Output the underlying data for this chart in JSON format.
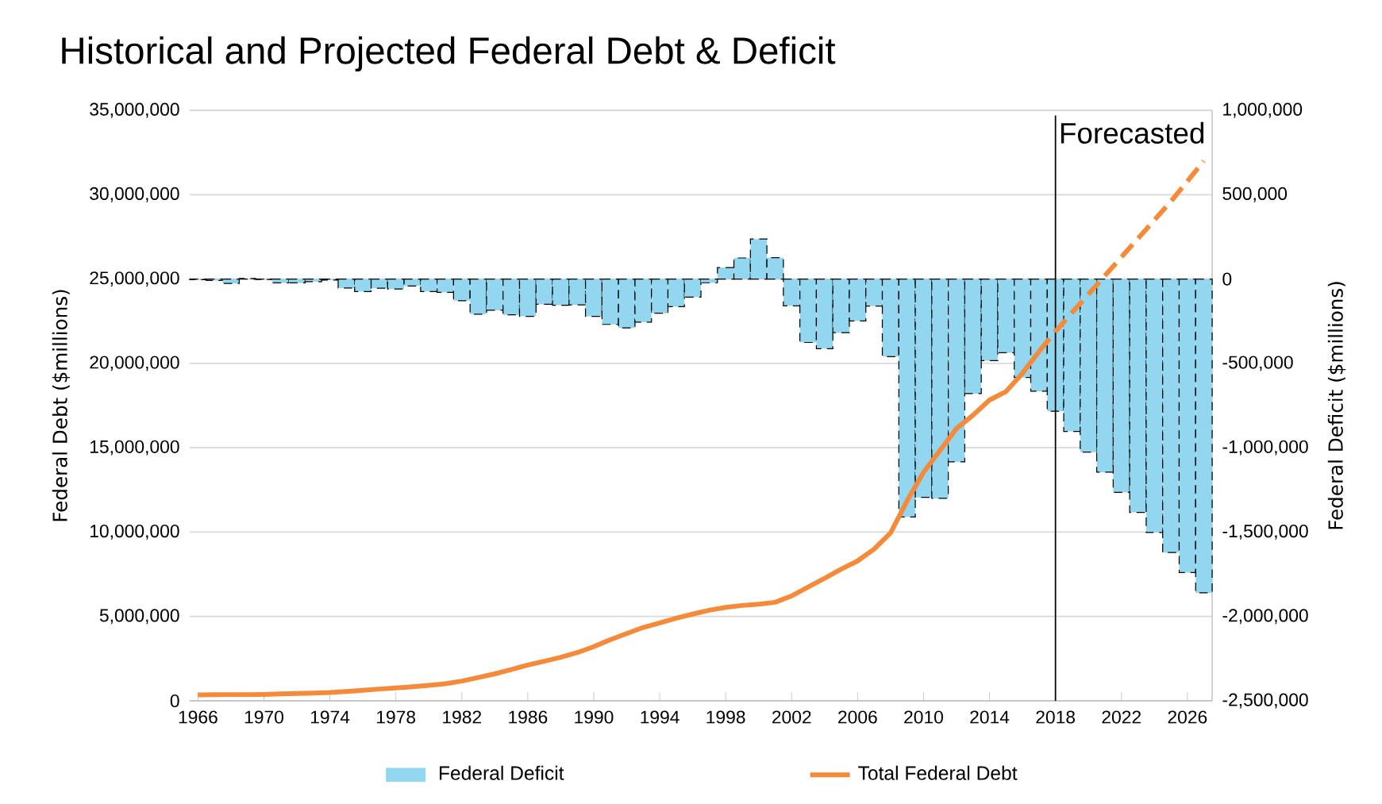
{
  "chart_data": {
    "type": "bar",
    "title": "Historical and Projected Federal Debt & Deficit",
    "ylabel": "Federal Debt ($millions)",
    "y2label": "Federal Deficit ($millions)",
    "categories": [
      "1966",
      null,
      null,
      null,
      "1970",
      null,
      null,
      null,
      "1974",
      null,
      null,
      null,
      "1978",
      null,
      null,
      null,
      "1982",
      null,
      null,
      null,
      "1986",
      null,
      null,
      null,
      "1990",
      null,
      null,
      null,
      "1994",
      null,
      null,
      null,
      "1998",
      null,
      null,
      null,
      "2002",
      null,
      null,
      null,
      "2006",
      null,
      null,
      null,
      "2010",
      null,
      null,
      null,
      "2014",
      null,
      null,
      null,
      "2018",
      null,
      null,
      null,
      "2022",
      null,
      null,
      null,
      "2026",
      null
    ],
    "series": [
      {
        "name": "Federal Deficit",
        "axis": "y2",
        "color": "#92d6ef",
        "values": [
          -4000,
          -9000,
          -26000,
          3000,
          -3000,
          -23000,
          -23000,
          -15000,
          -6000,
          -53000,
          -74000,
          -54000,
          -59000,
          -41000,
          -74000,
          -79000,
          -128000,
          -208000,
          -185000,
          -212000,
          -221000,
          -150000,
          -155000,
          -153000,
          -221000,
          -269000,
          -290000,
          -255000,
          -203000,
          -164000,
          -107000,
          -22000,
          68000,
          125000,
          237000,
          127000,
          -159000,
          -376000,
          -413000,
          -318000,
          -248000,
          -160000,
          -460000,
          -1410000,
          -1294000,
          -1300000,
          -1083000,
          -679000,
          -484000,
          -437000,
          -584000,
          -665000,
          -784000,
          -903000,
          -1026000,
          -1145000,
          -1264000,
          -1383000,
          -1502000,
          -1621000,
          -1740000,
          -1860000
        ]
      },
      {
        "name": "Total Federal Debt",
        "type": "line",
        "color": "#f58a3a",
        "line_style": "solid",
        "values": [
          350000,
          360000,
          370000,
          370000,
          380000,
          410000,
          430000,
          460000,
          490000,
          550000,
          620000,
          700000,
          760000,
          830000,
          920000,
          1010000,
          1170000,
          1380000,
          1600000,
          1850000,
          2120000,
          2350000,
          2580000,
          2860000,
          3210000,
          3620000,
          3990000,
          4350000,
          4620000,
          4900000,
          5140000,
          5370000,
          5540000,
          5650000,
          5730000,
          5840000,
          6220000,
          6750000,
          7260000,
          7800000,
          8290000,
          8990000,
          9960000,
          11850000,
          13550000,
          14840000,
          16140000,
          16930000,
          17830000,
          18330000,
          19420000,
          20700000,
          null,
          null,
          null,
          null,
          null,
          null,
          null,
          null,
          null,
          null
        ]
      },
      {
        "type": "line",
        "color": "#f58a3a",
        "line_style": "dashed",
        "values": [
          null,
          null,
          null,
          null,
          null,
          null,
          null,
          null,
          null,
          null,
          null,
          null,
          null,
          null,
          null,
          null,
          null,
          null,
          null,
          null,
          null,
          null,
          null,
          null,
          null,
          null,
          null,
          null,
          null,
          null,
          null,
          null,
          null,
          null,
          null,
          null,
          null,
          null,
          null,
          null,
          null,
          null,
          null,
          null,
          null,
          null,
          null,
          null,
          null,
          null,
          null,
          20700000,
          21900000,
          23000000,
          24100000,
          25200000,
          26300000,
          27400000,
          28500000,
          29600000,
          30800000,
          32000000
        ]
      }
    ],
    "ylim": [
      0,
      35000000
    ],
    "yticks": [
      {
        "value": 0,
        "label": "0"
      },
      {
        "value": 5000000,
        "label": "5,000,000"
      },
      {
        "value": 10000000,
        "label": "10,000,000"
      },
      {
        "value": 15000000,
        "label": "15,000,000"
      },
      {
        "value": 20000000,
        "label": "20,000,000"
      },
      {
        "value": 25000000,
        "label": "25,000,000"
      },
      {
        "value": 30000000,
        "label": "30,000,000"
      },
      {
        "value": 35000000,
        "label": "35,000,000"
      }
    ],
    "y2lim": [
      -2500000,
      1000000
    ],
    "y2ticks": [
      {
        "value": -2500000,
        "label": "-2,500,000"
      },
      {
        "value": -2000000,
        "label": "-2,000,000"
      },
      {
        "value": -1500000,
        "label": "-1,500,000"
      },
      {
        "value": -1000000,
        "label": "-1,000,000"
      },
      {
        "value": -500000,
        "label": "-500,000"
      },
      {
        "value": 0,
        "label": "0"
      },
      {
        "value": 500000,
        "label": "500,000"
      },
      {
        "value": 1000000,
        "label": "1,000,000"
      }
    ],
    "ref_lines": [
      {
        "axis": "x",
        "value": "2018",
        "label": "Forecasted",
        "color": "#000000"
      }
    ],
    "grid": "y",
    "legend": "bottom"
  }
}
